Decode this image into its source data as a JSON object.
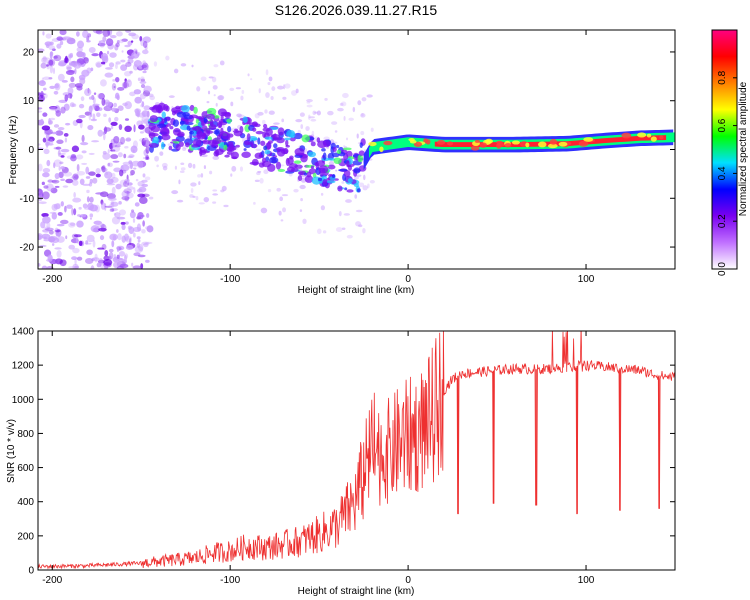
{
  "title": "S126.2026.039.11.27.R15",
  "chart_data": [
    {
      "type": "heatmap",
      "title": "S126.2026.039.11.27.R15",
      "xlabel": "Height of straight line (km)",
      "ylabel": "Frequency (Hz)",
      "xlim": [
        -208,
        150
      ],
      "ylim": [
        -24.5,
        24.5
      ],
      "xticks": [
        -200,
        -100,
        0,
        100
      ],
      "yticks": [
        -20,
        -10,
        0,
        10,
        20
      ],
      "xtick_labels": [
        "-200",
        "-100",
        "0",
        "100"
      ],
      "ytick_labels": [
        "-20",
        "-10",
        "0",
        "10",
        "20"
      ],
      "colorbar": {
        "label": "Normalized spectral amplitude",
        "range": [
          0,
          1
        ],
        "ticks": [
          0.0,
          0.2,
          0.4,
          0.6,
          0.8
        ],
        "tick_labels": [
          "0.0",
          "0.2",
          "0.4",
          "0.6",
          "0.8"
        ],
        "colors": [
          "#ffffff",
          "#c070ff",
          "#7a00f0",
          "#0000ff",
          "#00e0ff",
          "#00ff00",
          "#ffff00",
          "#ff8000",
          "#ff0000",
          "#ff0080"
        ]
      },
      "trace_points": [
        {
          "x": -140,
          "y": 4.5
        },
        {
          "x": -120,
          "y": 4.0
        },
        {
          "x": -100,
          "y": 3.0
        },
        {
          "x": -80,
          "y": 1.0
        },
        {
          "x": -60,
          "y": -1.5
        },
        {
          "x": -40,
          "y": -3.5
        },
        {
          "x": -28,
          "y": -4.5
        },
        {
          "x": -20,
          "y": 0.5
        },
        {
          "x": 0,
          "y": 1.5
        },
        {
          "x": 20,
          "y": 1.0
        },
        {
          "x": 60,
          "y": 1.0
        },
        {
          "x": 90,
          "y": 1.2
        },
        {
          "x": 110,
          "y": 1.8
        },
        {
          "x": 130,
          "y": 2.3
        },
        {
          "x": 150,
          "y": 2.5
        }
      ]
    },
    {
      "type": "line",
      "xlabel": "Height of straight line (km)",
      "ylabel": "SNR (10 * v/v)",
      "xlim": [
        -208,
        150
      ],
      "ylim": [
        0,
        1400
      ],
      "xticks": [
        -200,
        -100,
        0,
        100
      ],
      "yticks": [
        0,
        200,
        400,
        600,
        800,
        1000,
        1200,
        1400
      ],
      "xtick_labels": [
        "-200",
        "-100",
        "0",
        "100"
      ],
      "ytick_labels": [
        "0",
        "200",
        "400",
        "600",
        "800",
        "1000",
        "1200",
        "1400"
      ],
      "color": "#ee3030",
      "series": [
        {
          "name": "SNR",
          "x": [
            -208,
            -180,
            -160,
            -150,
            -140,
            -120,
            -110,
            -100,
            -90,
            -80,
            -70,
            -60,
            -50,
            -40,
            -30,
            -25,
            -20,
            -15,
            -10,
            -5,
            0,
            5,
            10,
            15,
            20,
            25,
            30,
            40,
            50,
            60,
            70,
            80,
            90,
            100,
            110,
            120,
            130,
            140,
            150
          ],
          "values": [
            20,
            25,
            35,
            40,
            50,
            70,
            100,
            110,
            140,
            130,
            150,
            170,
            210,
            260,
            400,
            550,
            700,
            680,
            700,
            750,
            780,
            800,
            850,
            920,
            1050,
            1120,
            1150,
            1160,
            1170,
            1180,
            1175,
            1180,
            1190,
            1200,
            1190,
            1180,
            1170,
            1140,
            1130
          ]
        }
      ],
      "spikes": [
        {
          "x": 48,
          "value": 390
        },
        {
          "x": 72,
          "value": 380
        },
        {
          "x": 95,
          "value": 330
        },
        {
          "x": 119,
          "value": 350
        },
        {
          "x": 141,
          "value": 360
        },
        {
          "x": 28,
          "value": 330
        }
      ]
    }
  ]
}
